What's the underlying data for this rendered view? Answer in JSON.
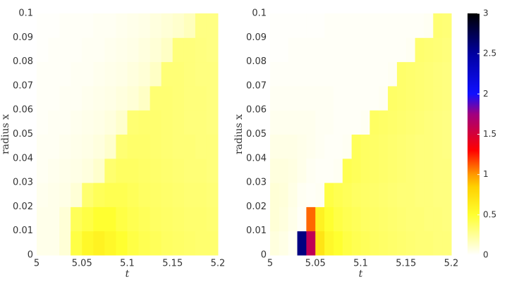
{
  "chart_data": [
    {
      "type": "heatmap",
      "xlabel": "t",
      "ylabel": "radius x",
      "xlim": [
        5,
        5.2
      ],
      "xticks": [
        5,
        5.05,
        5.1,
        5.15,
        5.2
      ],
      "ylim": [
        0,
        0.1
      ],
      "yticks": [
        0,
        0.01,
        0.02,
        0.03,
        0.04,
        0.05,
        0.06,
        0.07,
        0.08,
        0.09,
        0.1
      ],
      "colorscale": [
        [
          0,
          "#ffffff"
        ],
        [
          0.5,
          "#ffff30"
        ],
        [
          0.85,
          "#ffd000"
        ],
        [
          1.0,
          "#ff9a00"
        ],
        [
          1.3,
          "#ff0000"
        ],
        [
          1.75,
          "#a00080"
        ],
        [
          2.0,
          "#1010ff"
        ],
        [
          2.5,
          "#0000a0"
        ],
        [
          3,
          "#000000"
        ]
      ],
      "z": [
        [
          0.05,
          0.05,
          0.1,
          0.45,
          0.55,
          0.6,
          0.55,
          0.5,
          0.45,
          0.42,
          0.4,
          0.38,
          0.37,
          0.36,
          0.35,
          0.35
        ],
        [
          0.05,
          0.05,
          0.1,
          0.4,
          0.45,
          0.5,
          0.5,
          0.45,
          0.42,
          0.4,
          0.38,
          0.37,
          0.36,
          0.35,
          0.35,
          0.34
        ],
        [
          0.04,
          0.05,
          0.06,
          0.1,
          0.35,
          0.4,
          0.42,
          0.42,
          0.4,
          0.38,
          0.37,
          0.36,
          0.35,
          0.34,
          0.34,
          0.33
        ],
        [
          0.03,
          0.04,
          0.05,
          0.06,
          0.08,
          0.12,
          0.35,
          0.38,
          0.38,
          0.37,
          0.36,
          0.35,
          0.34,
          0.33,
          0.33,
          0.32
        ],
        [
          0.03,
          0.03,
          0.04,
          0.05,
          0.06,
          0.08,
          0.12,
          0.34,
          0.36,
          0.36,
          0.35,
          0.34,
          0.33,
          0.33,
          0.32,
          0.32
        ],
        [
          0.02,
          0.03,
          0.03,
          0.04,
          0.05,
          0.06,
          0.08,
          0.12,
          0.34,
          0.35,
          0.35,
          0.34,
          0.33,
          0.32,
          0.32,
          0.31
        ],
        [
          0.02,
          0.02,
          0.03,
          0.03,
          0.04,
          0.05,
          0.06,
          0.08,
          0.1,
          0.14,
          0.34,
          0.34,
          0.33,
          0.32,
          0.32,
          0.31
        ],
        [
          0.02,
          0.02,
          0.02,
          0.03,
          0.03,
          0.04,
          0.05,
          0.06,
          0.08,
          0.1,
          0.14,
          0.33,
          0.33,
          0.32,
          0.31,
          0.31
        ],
        [
          0.01,
          0.02,
          0.02,
          0.02,
          0.03,
          0.03,
          0.04,
          0.05,
          0.06,
          0.08,
          0.1,
          0.14,
          0.32,
          0.32,
          0.31,
          0.3
        ],
        [
          0.01,
          0.01,
          0.02,
          0.02,
          0.02,
          0.03,
          0.03,
          0.04,
          0.05,
          0.06,
          0.08,
          0.1,
          0.12,
          0.16,
          0.3,
          0.3
        ]
      ]
    },
    {
      "type": "heatmap",
      "xlabel": "t",
      "ylabel": "radius x",
      "xlim": [
        5,
        5.2
      ],
      "xticks": [
        5,
        5.05,
        5.1,
        5.15,
        5.2
      ],
      "ylim": [
        0,
        0.1
      ],
      "yticks": [
        0,
        0.01,
        0.02,
        0.03,
        0.04,
        0.05,
        0.06,
        0.07,
        0.08,
        0.09,
        0.1
      ],
      "colorscale": [
        [
          0,
          "#ffffff"
        ],
        [
          0.5,
          "#ffff30"
        ],
        [
          0.85,
          "#ffd000"
        ],
        [
          1.0,
          "#ff9a00"
        ],
        [
          1.3,
          "#ff0000"
        ],
        [
          1.75,
          "#a00080"
        ],
        [
          2.0,
          "#1010ff"
        ],
        [
          2.5,
          "#0000a0"
        ],
        [
          3,
          "#000000"
        ]
      ],
      "colorbar": {
        "lim": [
          0,
          3
        ],
        "ticks": [
          0,
          0.5,
          1,
          1.5,
          2,
          2.5,
          3
        ]
      },
      "z": [
        [
          0.08,
          0.06,
          0.03,
          2.6,
          1.6,
          0.7,
          0.55,
          0.5,
          0.45,
          0.42,
          0.4,
          0.38,
          0.37,
          0.36,
          0.35,
          0.34,
          0.33,
          0.33,
          0.32,
          0.32
        ],
        [
          0.1,
          0.08,
          0.05,
          0.02,
          1.1,
          0.6,
          0.5,
          0.45,
          0.42,
          0.4,
          0.38,
          0.37,
          0.36,
          0.35,
          0.34,
          0.33,
          0.33,
          0.32,
          0.32,
          0.31
        ],
        [
          0.1,
          0.09,
          0.06,
          0.03,
          0.02,
          0.03,
          0.45,
          0.42,
          0.4,
          0.38,
          0.37,
          0.36,
          0.35,
          0.34,
          0.33,
          0.33,
          0.32,
          0.32,
          0.31,
          0.31
        ],
        [
          0.08,
          0.08,
          0.07,
          0.05,
          0.03,
          0.02,
          0.02,
          0.03,
          0.42,
          0.4,
          0.38,
          0.37,
          0.36,
          0.35,
          0.34,
          0.33,
          0.32,
          0.32,
          0.31,
          0.31
        ],
        [
          0.06,
          0.06,
          0.06,
          0.05,
          0.04,
          0.03,
          0.02,
          0.02,
          0.03,
          0.4,
          0.38,
          0.37,
          0.36,
          0.35,
          0.34,
          0.33,
          0.32,
          0.32,
          0.31,
          0.3
        ],
        [
          0.04,
          0.04,
          0.04,
          0.04,
          0.04,
          0.03,
          0.03,
          0.02,
          0.02,
          0.02,
          0.03,
          0.38,
          0.37,
          0.36,
          0.35,
          0.34,
          0.33,
          0.32,
          0.31,
          0.3
        ],
        [
          0.03,
          0.03,
          0.03,
          0.03,
          0.03,
          0.03,
          0.03,
          0.02,
          0.02,
          0.02,
          0.02,
          0.02,
          0.03,
          0.37,
          0.36,
          0.35,
          0.34,
          0.33,
          0.32,
          0.31
        ],
        [
          0.02,
          0.02,
          0.02,
          0.02,
          0.02,
          0.02,
          0.02,
          0.02,
          0.02,
          0.02,
          0.02,
          0.02,
          0.02,
          0.03,
          0.36,
          0.35,
          0.34,
          0.33,
          0.32,
          0.31
        ],
        [
          0.01,
          0.01,
          0.02,
          0.02,
          0.02,
          0.02,
          0.02,
          0.02,
          0.02,
          0.02,
          0.02,
          0.02,
          0.02,
          0.02,
          0.02,
          0.03,
          0.35,
          0.34,
          0.33,
          0.32
        ],
        [
          0.01,
          0.01,
          0.01,
          0.01,
          0.01,
          0.01,
          0.02,
          0.02,
          0.02,
          0.02,
          0.02,
          0.02,
          0.02,
          0.02,
          0.02,
          0.02,
          0.02,
          0.03,
          0.34,
          0.33
        ]
      ]
    }
  ]
}
